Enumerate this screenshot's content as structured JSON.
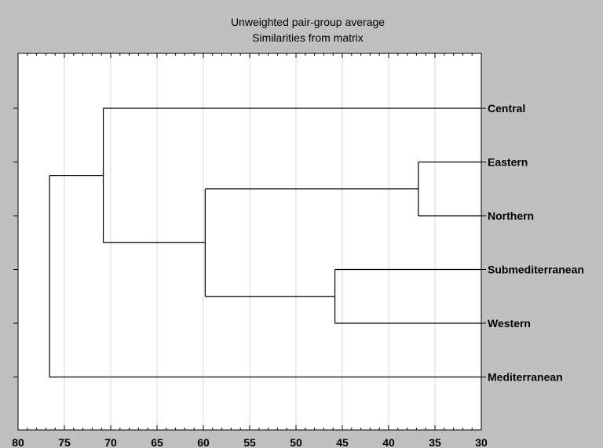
{
  "chart_data": {
    "type": "dendrogram",
    "title": "Unweighted pair-group average",
    "subtitle": "Similarities from matrix",
    "xlim": [
      80,
      30
    ],
    "x_ticks": [
      80,
      75,
      70,
      65,
      60,
      55,
      50,
      45,
      40,
      35,
      30
    ],
    "grid": "vertical",
    "leaves": [
      "Central",
      "Eastern",
      "Northern",
      "Submediterranean",
      "Western",
      "Mediterranean"
    ],
    "merges": [
      {
        "id": "A",
        "members": [
          "Eastern",
          "Northern"
        ],
        "height": 36.8
      },
      {
        "id": "B",
        "members": [
          "Submediterranean",
          "Western"
        ],
        "height": 45.8
      },
      {
        "id": "C",
        "members": [
          "A",
          "B"
        ],
        "height": 59.8
      },
      {
        "id": "D",
        "members": [
          "Central",
          "C"
        ],
        "height": 70.8
      },
      {
        "id": "E",
        "members": [
          "D",
          "Mediterranean"
        ],
        "height": 76.6
      }
    ],
    "colors": {
      "background": "#c0c0c0",
      "plot": "#ffffff",
      "line": "#000000",
      "grid": "#d8d8d8"
    }
  }
}
